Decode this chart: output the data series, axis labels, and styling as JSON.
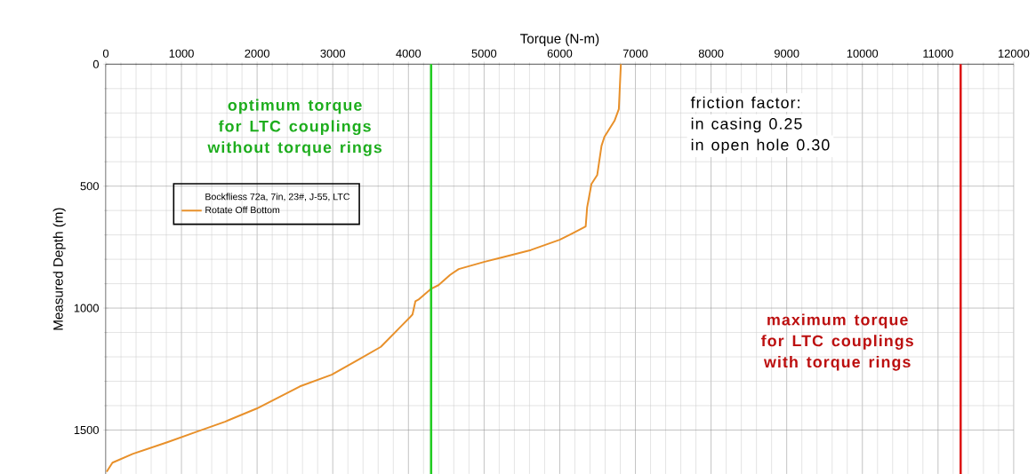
{
  "chart_data": {
    "type": "line",
    "xlabel": "Torque (N-m)",
    "ylabel": "Measured Depth (m)",
    "xlim": [
      0,
      12000
    ],
    "xticks": [
      0,
      1000,
      2000,
      3000,
      4000,
      5000,
      6000,
      7000,
      8000,
      9000,
      10000,
      11000,
      12000
    ],
    "ylim": [
      1680,
      0
    ],
    "yticks": [
      0,
      500,
      1000,
      1500
    ],
    "grid": true,
    "legend": "top left",
    "legend_title": "Bockfliess 72a, 7in, 23#, J-55, LTC",
    "marker": "none",
    "line_style": "solid",
    "series": [
      {
        "name": "Rotate Off Bottom",
        "color": "#e8902a",
        "x": [
          6808,
          6781,
          6724,
          6590,
          6552,
          6495,
          6419,
          6362,
          6343,
          6152,
          5999,
          5618,
          5237,
          5008,
          4665,
          4550,
          4397,
          4294,
          4130,
          4092,
          4054,
          4016,
          3902,
          3635,
          3330,
          2986,
          2566,
          1994,
          1575,
          1193,
          812,
          355,
          88,
          11
        ],
        "values": [
          0,
          184,
          232,
          298,
          335,
          455,
          491,
          587,
          665,
          696,
          720,
          762,
          792,
          810,
          840,
          864,
          906,
          922,
          966,
          972,
          1026,
          1039,
          1075,
          1159,
          1213,
          1273,
          1321,
          1412,
          1466,
          1508,
          1550,
          1598,
          1634,
          1671
        ]
      }
    ],
    "ref_lines": [
      {
        "axis": "x",
        "value": 4300,
        "label": "optimum torque for LTC couplings without torque rings",
        "color": "#22cc22"
      },
      {
        "axis": "x",
        "value": 11300,
        "label": "maximum torque for LTC couplings with torque rings",
        "color": "#dd1111"
      }
    ],
    "annotations": [
      "friction factor:",
      "in casing 0.25",
      "in open hole 0.30"
    ]
  }
}
